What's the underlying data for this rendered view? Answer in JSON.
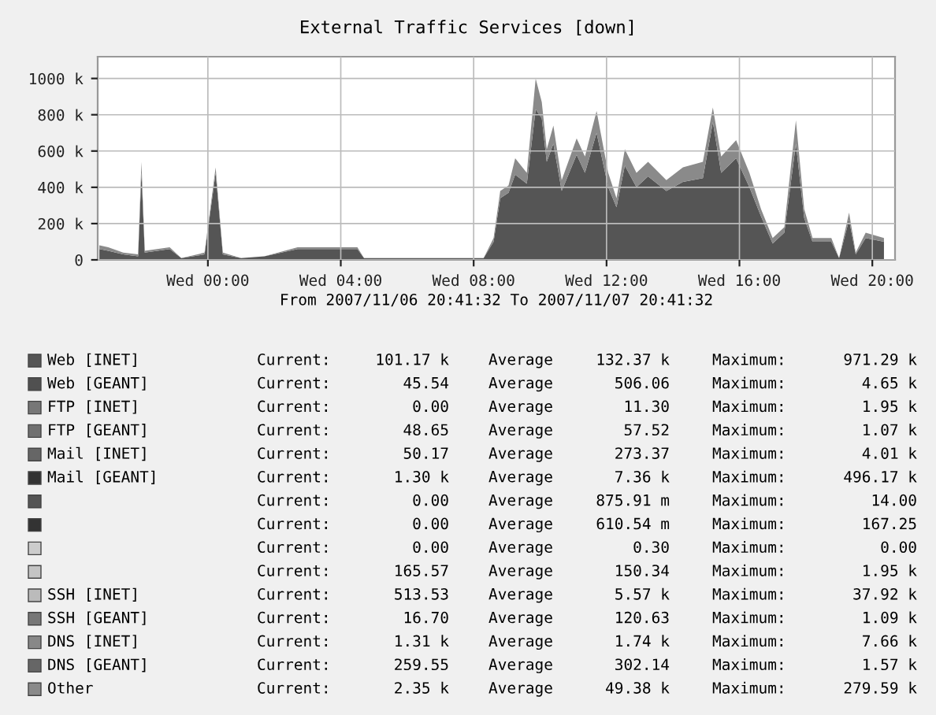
{
  "chart_data": {
    "type": "area",
    "stacked": true,
    "title": "External Traffic Services [down]",
    "xlabel": "From 2007/11/06 20:41:32 To 2007/11/07 20:41:32",
    "x": [
      "2007-11-06T20:44",
      "2007-11-06T21:00",
      "2007-11-06T21:27",
      "2007-11-06T21:54",
      "2007-11-06T22:00",
      "2007-11-06T22:06",
      "2007-11-06T22:51",
      "2007-11-06T23:12",
      "2007-11-06T23:54",
      "2007-11-07T00:14",
      "2007-11-07T00:27",
      "2007-11-07T01:00",
      "2007-11-07T01:42",
      "2007-11-07T02:42",
      "2007-11-07T04:30",
      "2007-11-07T04:42",
      "2007-11-07T06:18",
      "2007-11-07T08:00",
      "2007-11-07T08:18",
      "2007-11-07T08:36",
      "2007-11-07T08:48",
      "2007-11-07T09:03",
      "2007-11-07T09:15",
      "2007-11-07T09:36",
      "2007-11-07T09:52",
      "2007-11-07T10:03",
      "2007-11-07T10:12",
      "2007-11-07T10:24",
      "2007-11-07T10:39",
      "2007-11-07T11:06",
      "2007-11-07T11:21",
      "2007-11-07T11:42",
      "2007-11-07T12:03",
      "2007-11-07T12:18",
      "2007-11-07T12:33",
      "2007-11-07T12:54",
      "2007-11-07T13:15",
      "2007-11-07T13:48",
      "2007-11-07T14:18",
      "2007-11-07T14:54",
      "2007-11-07T15:12",
      "2007-11-07T15:27",
      "2007-11-07T15:54",
      "2007-11-07T16:18",
      "2007-11-07T16:39",
      "2007-11-07T17:00",
      "2007-11-07T17:21",
      "2007-11-07T17:42",
      "2007-11-07T17:57",
      "2007-11-07T18:12",
      "2007-11-07T18:46",
      "2007-11-07T19:00",
      "2007-11-07T19:18",
      "2007-11-07T19:30",
      "2007-11-07T19:48",
      "2007-11-07T20:21"
    ],
    "xlim": [
      "2007-11-06T20:41",
      "2007-11-07T20:41"
    ],
    "xticks": [
      {
        "value": "2007-11-07T00:00",
        "label": "Wed 00:00"
      },
      {
        "value": "2007-11-07T04:00",
        "label": "Wed 04:00"
      },
      {
        "value": "2007-11-07T08:00",
        "label": "Wed 08:00"
      },
      {
        "value": "2007-11-07T12:00",
        "label": "Wed 12:00"
      },
      {
        "value": "2007-11-07T16:00",
        "label": "Wed 16:00"
      },
      {
        "value": "2007-11-07T20:00",
        "label": "Wed 20:00"
      }
    ],
    "ylim": [
      0,
      1120
    ],
    "yticks": [
      0,
      {
        "value": 200,
        "label": "200 k"
      },
      {
        "value": 400,
        "label": "400 k"
      },
      {
        "value": 600,
        "label": "600 k"
      },
      {
        "value": 800,
        "label": "800 k"
      },
      {
        "value": 1000,
        "label": "1000 k"
      }
    ],
    "grid": true,
    "legend": "bottom",
    "series": [
      {
        "name": "Web [INET]",
        "color": "#555555",
        "values": [
          60,
          50,
          30,
          20,
          480,
          40,
          60,
          10,
          30,
          480,
          30,
          10,
          20,
          60,
          60,
          10,
          10,
          10,
          10,
          100,
          340,
          370,
          470,
          420,
          830,
          780,
          540,
          640,
          380,
          580,
          480,
          700,
          400,
          290,
          520,
          400,
          460,
          380,
          430,
          450,
          760,
          480,
          560,
          400,
          240,
          90,
          150,
          640,
          230,
          100,
          100,
          10,
          220,
          30,
          120,
          100
        ]
      },
      {
        "name": "Web [GEANT]",
        "color": "#505050",
        "values": [
          null,
          null,
          null,
          null,
          null,
          null,
          null,
          null,
          null,
          null,
          null,
          null,
          null,
          null,
          null,
          null,
          null,
          null,
          null,
          null,
          null,
          null,
          null,
          null,
          null,
          null,
          null,
          null,
          null,
          null,
          null,
          null,
          null,
          null,
          null,
          null,
          null,
          null,
          null,
          null,
          null,
          null,
          null,
          null,
          null,
          null,
          null,
          null,
          null,
          null,
          null,
          null,
          null,
          null,
          null,
          null
        ]
      },
      {
        "name": "FTP [INET]",
        "color": "#777777",
        "values": [
          null,
          null,
          null,
          null,
          null,
          null,
          null,
          null,
          null,
          null,
          null,
          null,
          null,
          null,
          null,
          null,
          null,
          null,
          null,
          null,
          null,
          null,
          null,
          null,
          null,
          null,
          null,
          null,
          null,
          null,
          null,
          null,
          null,
          null,
          null,
          null,
          null,
          null,
          null,
          null,
          null,
          null,
          null,
          null,
          null,
          null,
          null,
          null,
          null,
          null,
          null,
          null,
          null,
          null,
          null,
          null
        ]
      },
      {
        "name": "FTP [GEANT]",
        "color": "#707070",
        "values": [
          null,
          null,
          null,
          null,
          null,
          null,
          null,
          null,
          null,
          null,
          null,
          null,
          null,
          null,
          null,
          null,
          null,
          null,
          null,
          null,
          null,
          null,
          null,
          null,
          null,
          null,
          null,
          null,
          null,
          null,
          null,
          null,
          null,
          null,
          null,
          null,
          null,
          null,
          null,
          null,
          null,
          null,
          null,
          null,
          null,
          null,
          null,
          null,
          null,
          null,
          null,
          null,
          null,
          null,
          null,
          null
        ]
      },
      {
        "name": "Mail [INET]",
        "color": "#666666",
        "values": [
          null,
          null,
          null,
          null,
          null,
          null,
          null,
          null,
          null,
          null,
          null,
          null,
          null,
          null,
          null,
          null,
          null,
          null,
          null,
          null,
          null,
          null,
          null,
          null,
          null,
          null,
          null,
          null,
          null,
          null,
          null,
          null,
          null,
          null,
          null,
          null,
          null,
          null,
          null,
          null,
          null,
          null,
          null,
          null,
          null,
          null,
          null,
          null,
          null,
          null,
          null,
          null,
          null,
          null,
          null,
          null
        ]
      },
      {
        "name": "Mail [GEANT]",
        "color": "#333333",
        "values": [
          null,
          null,
          null,
          null,
          null,
          null,
          null,
          null,
          null,
          null,
          null,
          null,
          null,
          null,
          null,
          null,
          null,
          null,
          null,
          null,
          null,
          null,
          null,
          null,
          null,
          null,
          null,
          null,
          null,
          null,
          null,
          null,
          null,
          null,
          null,
          null,
          null,
          null,
          null,
          null,
          null,
          null,
          null,
          null,
          null,
          null,
          null,
          null,
          null,
          null,
          null,
          null,
          null,
          null,
          null,
          null
        ]
      },
      {
        "color": "#555555",
        "values": [
          null,
          null,
          null,
          null,
          null,
          null,
          null,
          null,
          null,
          null,
          null,
          null,
          null,
          null,
          null,
          null,
          null,
          null,
          null,
          null,
          null,
          null,
          null,
          null,
          null,
          null,
          null,
          null,
          null,
          null,
          null,
          null,
          null,
          null,
          null,
          null,
          null,
          null,
          null,
          null,
          null,
          null,
          null,
          null,
          null,
          null,
          null,
          null,
          null,
          null,
          null,
          null,
          null,
          null,
          null,
          null
        ]
      },
      {
        "color": "#333333",
        "values": [
          null,
          null,
          null,
          null,
          null,
          null,
          null,
          null,
          null,
          null,
          null,
          null,
          null,
          null,
          null,
          null,
          null,
          null,
          null,
          null,
          null,
          null,
          null,
          null,
          null,
          null,
          null,
          null,
          null,
          null,
          null,
          null,
          null,
          null,
          null,
          null,
          null,
          null,
          null,
          null,
          null,
          null,
          null,
          null,
          null,
          null,
          null,
          null,
          null,
          null,
          null,
          null,
          null,
          null,
          null,
          null
        ]
      },
      {
        "color": "#cccccc",
        "values": [
          null,
          null,
          null,
          null,
          null,
          null,
          null,
          null,
          null,
          null,
          null,
          null,
          null,
          null,
          null,
          null,
          null,
          null,
          null,
          null,
          null,
          null,
          null,
          null,
          null,
          null,
          null,
          null,
          null,
          null,
          null,
          null,
          null,
          null,
          null,
          null,
          null,
          null,
          null,
          null,
          null,
          null,
          null,
          null,
          null,
          null,
          null,
          null,
          null,
          null,
          null,
          null,
          null,
          null,
          null,
          null
        ]
      },
      {
        "color": "#c4c4c4",
        "values": [
          null,
          null,
          null,
          null,
          null,
          null,
          null,
          null,
          null,
          null,
          null,
          null,
          null,
          null,
          null,
          null,
          null,
          null,
          null,
          null,
          null,
          null,
          null,
          null,
          null,
          null,
          null,
          null,
          null,
          null,
          null,
          null,
          null,
          null,
          null,
          null,
          null,
          null,
          null,
          null,
          null,
          null,
          null,
          null,
          null,
          null,
          null,
          null,
          null,
          null,
          null,
          null,
          null,
          null,
          null,
          null
        ]
      },
      {
        "name": "SSH [INET]",
        "color": "#bbbbbb",
        "values": [
          null,
          null,
          null,
          null,
          null,
          null,
          null,
          null,
          null,
          null,
          null,
          null,
          null,
          null,
          null,
          null,
          null,
          null,
          null,
          null,
          null,
          null,
          null,
          null,
          null,
          null,
          null,
          null,
          null,
          null,
          null,
          null,
          null,
          null,
          null,
          null,
          null,
          null,
          null,
          null,
          null,
          null,
          null,
          null,
          null,
          null,
          null,
          null,
          null,
          null,
          null,
          null,
          null,
          null,
          null,
          null
        ]
      },
      {
        "name": "SSH [GEANT]",
        "color": "#777777",
        "values": [
          null,
          null,
          null,
          null,
          null,
          null,
          null,
          null,
          null,
          null,
          null,
          null,
          null,
          null,
          null,
          null,
          null,
          null,
          null,
          null,
          null,
          null,
          null,
          null,
          null,
          null,
          null,
          null,
          null,
          null,
          null,
          null,
          null,
          null,
          null,
          null,
          null,
          null,
          null,
          null,
          null,
          null,
          null,
          null,
          null,
          null,
          null,
          null,
          null,
          null,
          null,
          null,
          null,
          null,
          null,
          null
        ]
      },
      {
        "name": "DNS [INET]",
        "color": "#888888",
        "values": [
          null,
          null,
          null,
          null,
          null,
          null,
          null,
          null,
          null,
          null,
          null,
          null,
          null,
          null,
          null,
          null,
          null,
          null,
          null,
          null,
          null,
          null,
          null,
          null,
          null,
          null,
          null,
          null,
          null,
          null,
          null,
          null,
          null,
          null,
          null,
          null,
          null,
          null,
          null,
          null,
          null,
          null,
          null,
          null,
          null,
          null,
          null,
          null,
          null,
          null,
          null,
          null,
          null,
          null,
          null,
          null
        ]
      },
      {
        "name": "DNS [GEANT]",
        "color": "#666666",
        "values": [
          null,
          null,
          null,
          null,
          null,
          null,
          null,
          null,
          null,
          null,
          null,
          null,
          null,
          null,
          null,
          null,
          null,
          null,
          null,
          null,
          null,
          null,
          null,
          null,
          null,
          null,
          null,
          null,
          null,
          null,
          null,
          null,
          null,
          null,
          null,
          null,
          null,
          null,
          null,
          null,
          null,
          null,
          null,
          null,
          null,
          null,
          null,
          null,
          null,
          null,
          null,
          null,
          null,
          null,
          null,
          null
        ]
      },
      {
        "name": "Other",
        "color": "#8a8a8a",
        "values": [
          20,
          20,
          10,
          10,
          60,
          10,
          10,
          0,
          10,
          30,
          10,
          0,
          0,
          10,
          10,
          0,
          0,
          0,
          0,
          20,
          40,
          40,
          90,
          60,
          170,
          90,
          70,
          100,
          60,
          90,
          90,
          120,
          80,
          50,
          90,
          80,
          80,
          60,
          80,
          90,
          80,
          90,
          100,
          80,
          40,
          30,
          30,
          130,
          50,
          20,
          20,
          0,
          40,
          10,
          30,
          20
        ]
      }
    ],
    "annotations": [
      "Current:",
      "101.17 k",
      "Average",
      "132.37 k",
      "Maximum:",
      "971.29 k",
      "Current:",
      "45.54",
      "Average",
      "506.06",
      "Maximum:",
      "4.65 k",
      "Current:",
      "0.00",
      "Average",
      "11.30",
      "Maximum:",
      "1.95 k",
      "Current:",
      "48.65",
      "Average",
      "57.52",
      "Maximum:",
      "1.07 k",
      "Current:",
      "50.17",
      "Average",
      "273.37",
      "Maximum:",
      "4.01 k",
      "Current:",
      "1.30 k",
      "Average",
      "7.36 k",
      "Maximum:",
      "496.17 k",
      "Current:",
      "0.00",
      "Average",
      "875.91 m",
      "Maximum:",
      "14.00",
      "Current:",
      "0.00",
      "Average",
      "610.54 m",
      "Maximum:",
      "167.25",
      "Current:",
      "0.00",
      "Average",
      "0.30",
      "Maximum:",
      "0.00",
      "Current:",
      "165.57",
      "Average",
      "150.34",
      "Maximum:",
      "1.95 k",
      "Current:",
      "513.53",
      "Average",
      "5.57 k",
      "Maximum:",
      "37.92 k",
      "Current:",
      "16.70",
      "Average",
      "120.63",
      "Maximum:",
      "1.09 k",
      "Current:",
      "1.31 k",
      "Average",
      "1.74 k",
      "Maximum:",
      "7.66 k",
      "Current:",
      "259.55",
      "Average",
      "302.14",
      "Maximum:",
      "1.57 k",
      "Current:",
      "2.35 k",
      "Average",
      "49.38 k",
      "Maximum:",
      "279.59 k"
    ]
  }
}
